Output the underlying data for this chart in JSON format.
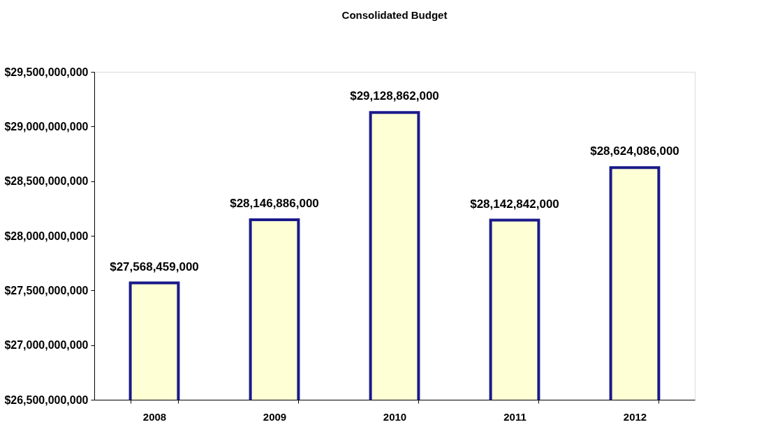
{
  "chart_data": {
    "type": "bar",
    "title": "Consolidated Budget",
    "categories": [
      "2008",
      "2009",
      "2010",
      "2011",
      "2012"
    ],
    "series": [
      {
        "color": "#ffffd6",
        "values": [
          27568459000,
          28146886000,
          29128862000,
          28142842000,
          28624086000
        ]
      }
    ],
    "value_labels": [
      "$27,568,459,000",
      "$28,146,886,000",
      "$29,128,862,000",
      "$28,142,842,000",
      "$28,624,086,000"
    ],
    "ylim": [
      26500000000,
      29500000000
    ],
    "yticks": [
      {
        "value": 26500000000,
        "label": "$26,500,000,000"
      },
      {
        "value": 27000000000,
        "label": "$27,000,000,000"
      },
      {
        "value": 27500000000,
        "label": "$27,500,000,000"
      },
      {
        "value": 28000000000,
        "label": "$28,000,000,000"
      },
      {
        "value": 28500000000,
        "label": "$28,500,000,000"
      },
      {
        "value": 29000000000,
        "label": "$29,000,000,000"
      },
      {
        "value": 29500000000,
        "label": "$29,500,000,000"
      }
    ],
    "grid": false
  }
}
